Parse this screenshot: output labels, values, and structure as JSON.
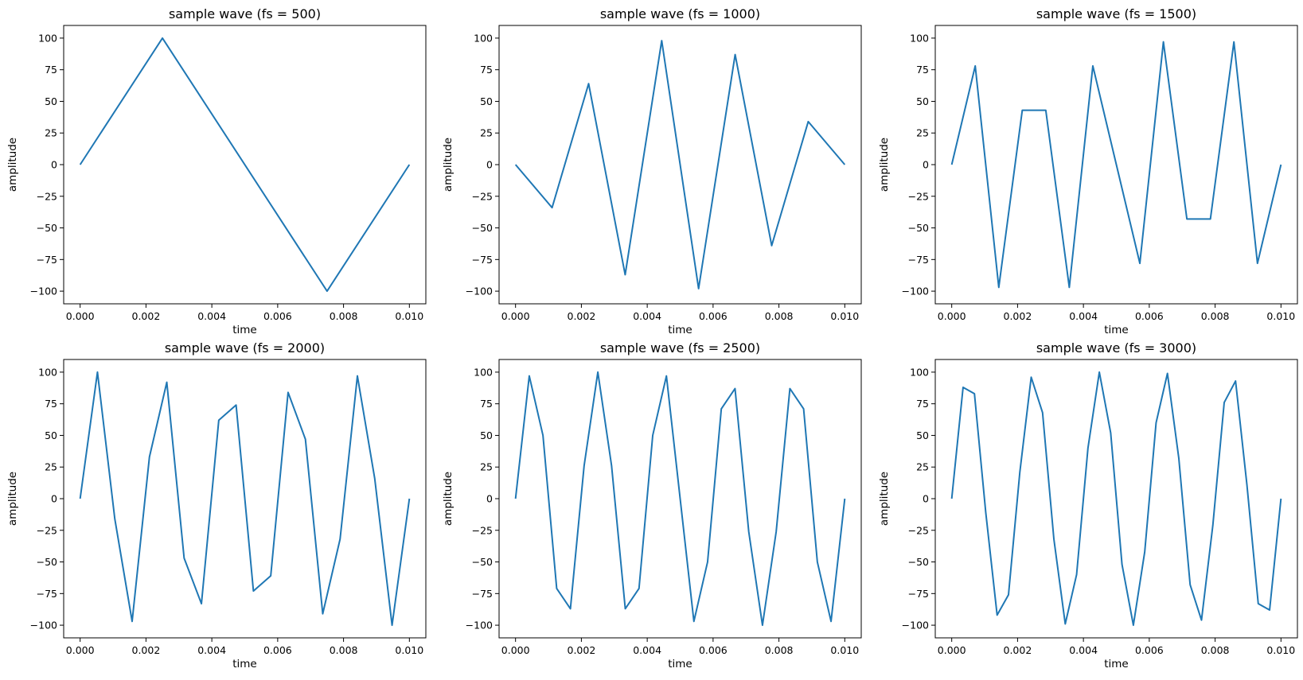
{
  "chart_data": [
    {
      "type": "line",
      "title": "sample wave (fs = 500)",
      "xlabel": "time",
      "ylabel": "amplitude",
      "xlim": [
        -0.0005,
        0.0105
      ],
      "ylim": [
        -110,
        110
      ],
      "xticks": [
        0.0,
        0.002,
        0.004,
        0.006,
        0.008,
        0.01
      ],
      "xtick_labels": [
        "0.000",
        "0.002",
        "0.004",
        "0.006",
        "0.008",
        "0.010"
      ],
      "yticks": [
        100,
        75,
        50,
        25,
        0,
        -25,
        -50,
        -75,
        -100
      ],
      "ytick_labels": [
        "100",
        "75",
        "50",
        "25",
        "0",
        "−25",
        "−50",
        "−75",
        "−100"
      ],
      "grid": false,
      "color": "#1f77b4",
      "x": [
        0.0,
        0.0025,
        0.0075,
        0.01
      ],
      "y": [
        0,
        100,
        -100,
        0
      ]
    },
    {
      "type": "line",
      "title": "sample wave (fs = 1000)",
      "xlabel": "time",
      "ylabel": "amplitude",
      "xlim": [
        -0.0005,
        0.0105
      ],
      "ylim": [
        -110,
        110
      ],
      "xticks": [
        0.0,
        0.002,
        0.004,
        0.006,
        0.008,
        0.01
      ],
      "xtick_labels": [
        "0.000",
        "0.002",
        "0.004",
        "0.006",
        "0.008",
        "0.010"
      ],
      "yticks": [
        100,
        75,
        50,
        25,
        0,
        -25,
        -50,
        -75,
        -100
      ],
      "ytick_labels": [
        "100",
        "75",
        "50",
        "25",
        "0",
        "−25",
        "−50",
        "−75",
        "−100"
      ],
      "grid": false,
      "color": "#1f77b4",
      "x": [
        0.0,
        0.00111,
        0.00222,
        0.00333,
        0.00444,
        0.00556,
        0.00667,
        0.00778,
        0.00889,
        0.01
      ],
      "y": [
        0,
        -34,
        64,
        -87,
        98,
        -98,
        87,
        -64,
        34,
        0
      ]
    },
    {
      "type": "line",
      "title": "sample wave (fs = 1500)",
      "xlabel": "time",
      "ylabel": "amplitude",
      "xlim": [
        -0.0005,
        0.0105
      ],
      "ylim": [
        -110,
        110
      ],
      "xticks": [
        0.0,
        0.002,
        0.004,
        0.006,
        0.008,
        0.01
      ],
      "xtick_labels": [
        "0.000",
        "0.002",
        "0.004",
        "0.006",
        "0.008",
        "0.010"
      ],
      "yticks": [
        100,
        75,
        50,
        25,
        0,
        -25,
        -50,
        -75,
        -100
      ],
      "ytick_labels": [
        "100",
        "75",
        "50",
        "25",
        "0",
        "−25",
        "−50",
        "−75",
        "−100"
      ],
      "grid": false,
      "color": "#1f77b4",
      "x": [
        0.0,
        0.000714,
        0.001429,
        0.002143,
        0.002857,
        0.003571,
        0.004286,
        0.005,
        0.005714,
        0.006429,
        0.007143,
        0.007857,
        0.008571,
        0.009286,
        0.01
      ],
      "y": [
        0,
        78,
        -97,
        43,
        43,
        -97,
        78,
        0,
        -78,
        97,
        -43,
        -43,
        97,
        -78,
        0
      ]
    },
    {
      "type": "line",
      "title": "sample wave (fs = 2000)",
      "xlabel": "time",
      "ylabel": "amplitude",
      "xlim": [
        -0.0005,
        0.0105
      ],
      "ylim": [
        -110,
        110
      ],
      "xticks": [
        0.0,
        0.002,
        0.004,
        0.006,
        0.008,
        0.01
      ],
      "xtick_labels": [
        "0.000",
        "0.002",
        "0.004",
        "0.006",
        "0.008",
        "0.010"
      ],
      "yticks": [
        100,
        75,
        50,
        25,
        0,
        -25,
        -50,
        -75,
        -100
      ],
      "ytick_labels": [
        "100",
        "75",
        "50",
        "25",
        "0",
        "−25",
        "−50",
        "−75",
        "−100"
      ],
      "grid": false,
      "color": "#1f77b4",
      "x": [
        0.0,
        0.000526,
        0.001053,
        0.001579,
        0.002105,
        0.002632,
        0.003158,
        0.003684,
        0.004211,
        0.004737,
        0.005263,
        0.005789,
        0.006316,
        0.006842,
        0.007368,
        0.007895,
        0.008421,
        0.008947,
        0.009474,
        0.01
      ],
      "y": [
        0,
        100,
        -16,
        -97,
        33,
        92,
        -47,
        -83,
        62,
        74,
        -73,
        -61,
        84,
        47,
        -91,
        -32,
        97,
        16,
        -100,
        0
      ]
    },
    {
      "type": "line",
      "title": "sample wave (fs = 2500)",
      "xlabel": "time",
      "ylabel": "amplitude",
      "xlim": [
        -0.0005,
        0.0105
      ],
      "ylim": [
        -110,
        110
      ],
      "xticks": [
        0.0,
        0.002,
        0.004,
        0.006,
        0.008,
        0.01
      ],
      "xtick_labels": [
        "0.000",
        "0.002",
        "0.004",
        "0.006",
        "0.008",
        "0.010"
      ],
      "yticks": [
        100,
        75,
        50,
        25,
        0,
        -25,
        -50,
        -75,
        -100
      ],
      "ytick_labels": [
        "100",
        "75",
        "50",
        "25",
        "0",
        "−25",
        "−50",
        "−75",
        "−100"
      ],
      "grid": false,
      "color": "#1f77b4",
      "x": [
        0.0,
        0.000417,
        0.000833,
        0.00125,
        0.001667,
        0.002083,
        0.0025,
        0.002917,
        0.003333,
        0.00375,
        0.004167,
        0.004583,
        0.005,
        0.005417,
        0.005833,
        0.00625,
        0.006667,
        0.007083,
        0.0075,
        0.007917,
        0.008333,
        0.00875,
        0.009167,
        0.009583,
        0.01
      ],
      "y": [
        0,
        97,
        50,
        -71,
        -87,
        26,
        100,
        26,
        -87,
        -71,
        50,
        97,
        0,
        -97,
        -50,
        71,
        87,
        -26,
        -100,
        -26,
        87,
        71,
        -50,
        -97,
        0
      ]
    },
    {
      "type": "line",
      "title": "sample wave (fs = 3000)",
      "xlabel": "time",
      "ylabel": "amplitude",
      "xlim": [
        -0.0005,
        0.0105
      ],
      "ylim": [
        -110,
        110
      ],
      "xticks": [
        0.0,
        0.002,
        0.004,
        0.006,
        0.008,
        0.01
      ],
      "xtick_labels": [
        "0.000",
        "0.002",
        "0.004",
        "0.006",
        "0.008",
        "0.010"
      ],
      "yticks": [
        100,
        75,
        50,
        25,
        0,
        -25,
        -50,
        -75,
        -100
      ],
      "ytick_labels": [
        "100",
        "75",
        "50",
        "25",
        "0",
        "−25",
        "−50",
        "−75",
        "−100"
      ],
      "grid": false,
      "color": "#1f77b4",
      "x": [
        0.0,
        0.000345,
        0.00069,
        0.001034,
        0.001379,
        0.001724,
        0.002069,
        0.002414,
        0.002759,
        0.003103,
        0.003448,
        0.003793,
        0.004138,
        0.004483,
        0.004828,
        0.005172,
        0.005517,
        0.005862,
        0.006207,
        0.006552,
        0.006897,
        0.007241,
        0.007586,
        0.007931,
        0.008276,
        0.008621,
        0.008966,
        0.00931,
        0.009655,
        0.01
      ],
      "y": [
        0,
        88,
        83,
        -11,
        -92,
        -76,
        21,
        96,
        68,
        -32,
        -99,
        -60,
        40,
        100,
        52,
        -52,
        -100,
        -42,
        60,
        99,
        32,
        -68,
        -96,
        -21,
        76,
        93,
        11,
        -83,
        -88,
        0
      ]
    }
  ]
}
